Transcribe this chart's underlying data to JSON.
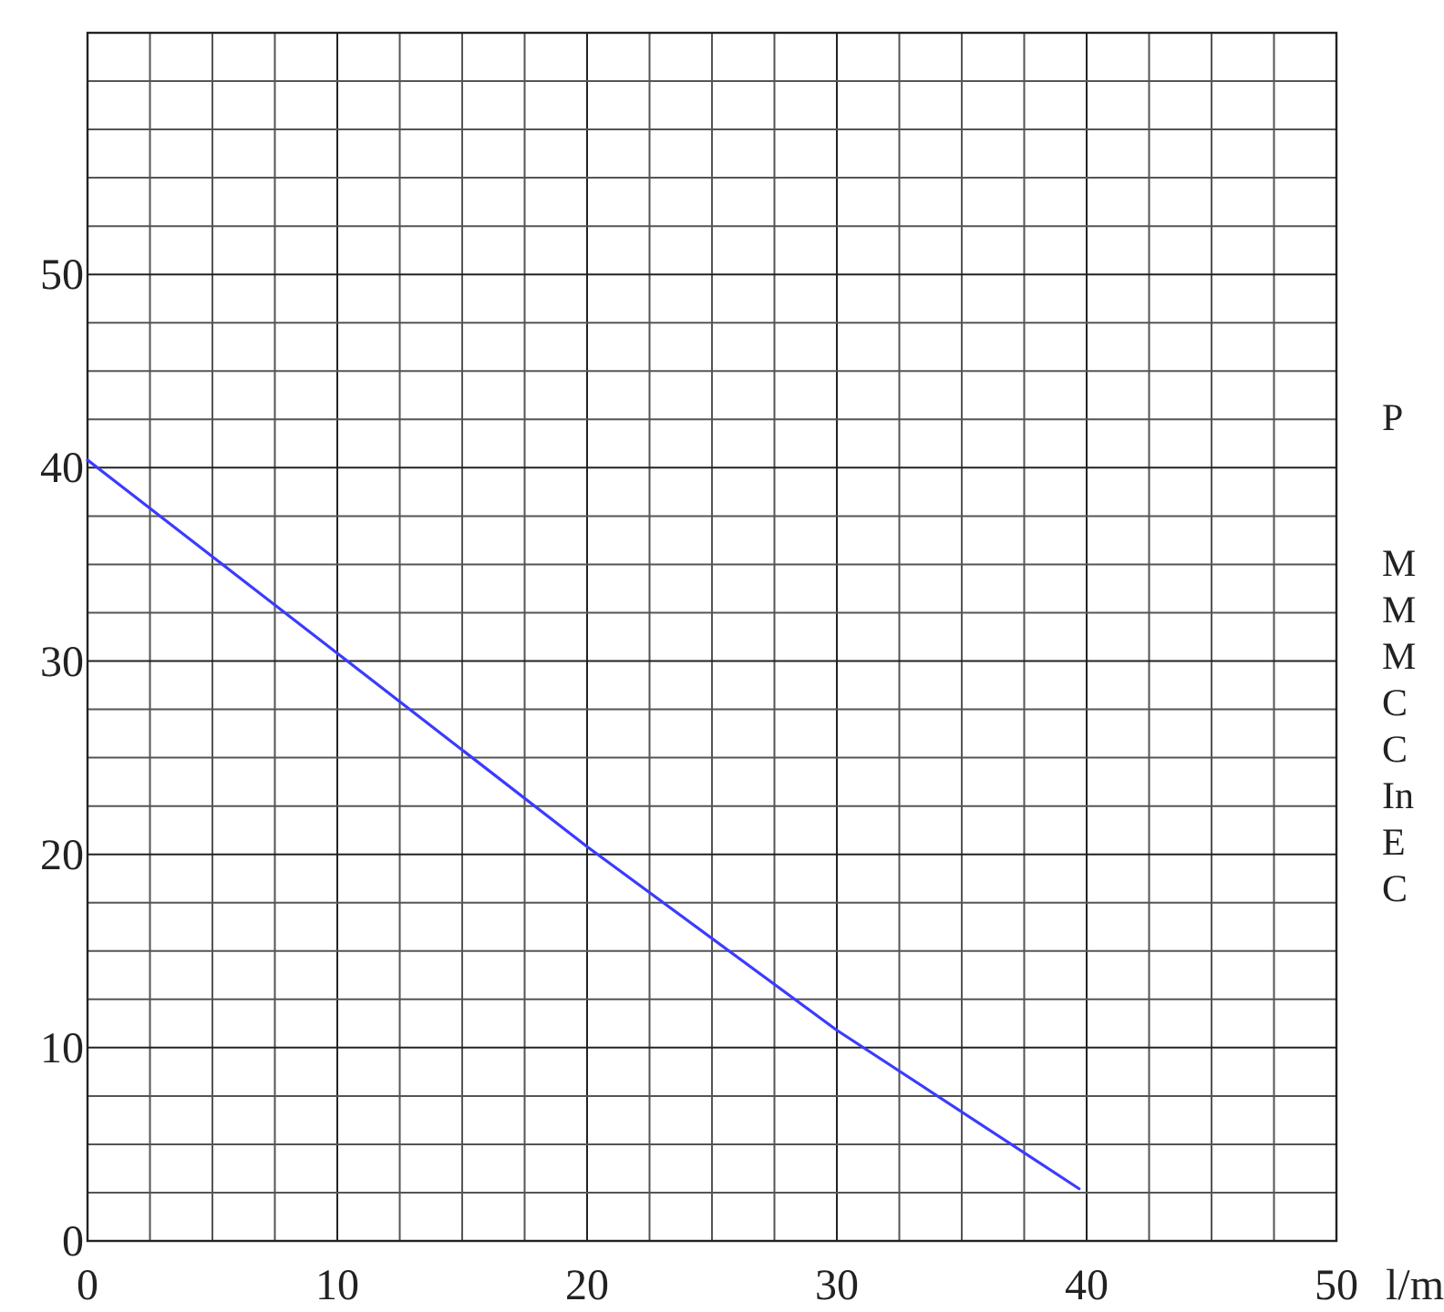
{
  "chart_data": {
    "type": "line",
    "xlabel": "l/m",
    "x": [
      0,
      10,
      20,
      30,
      39.7
    ],
    "values": [
      40.4,
      30.4,
      20.4,
      10.9,
      2.7
    ],
    "color": "#3b3bff",
    "xlim": [
      0,
      50
    ],
    "ylim": [
      0,
      62.5
    ],
    "xticks": [
      0,
      {
        "value": 2.5,
        "label": null
      },
      {
        "value": 5,
        "label": null
      },
      {
        "value": 7.5,
        "label": null
      },
      10,
      {
        "value": 12.5,
        "label": null
      },
      {
        "value": 15,
        "label": null
      },
      {
        "value": 17.5,
        "label": null
      },
      20,
      {
        "value": 22.5,
        "label": null
      },
      {
        "value": 25,
        "label": null
      },
      {
        "value": 27.5,
        "label": null
      },
      30,
      {
        "value": 32.5,
        "label": null
      },
      {
        "value": 35,
        "label": null
      },
      {
        "value": 37.5,
        "label": null
      },
      40,
      {
        "value": 42.5,
        "label": null
      },
      {
        "value": 45,
        "label": null
      },
      {
        "value": 47.5,
        "label": null
      },
      50
    ],
    "yticks": [
      0,
      {
        "value": 2.5,
        "label": null
      },
      {
        "value": 5,
        "label": null
      },
      {
        "value": 7.5,
        "label": null
      },
      10,
      {
        "value": 12.5,
        "label": null
      },
      {
        "value": 15,
        "label": null
      },
      {
        "value": 17.5,
        "label": null
      },
      20,
      {
        "value": 22.5,
        "label": null
      },
      {
        "value": 25,
        "label": null
      },
      {
        "value": 27.5,
        "label": null
      },
      30,
      {
        "value": 32.5,
        "label": null
      },
      {
        "value": 35,
        "label": null
      },
      {
        "value": 37.5,
        "label": null
      },
      40,
      {
        "value": 42.5,
        "label": null
      },
      {
        "value": 45,
        "label": null
      },
      {
        "value": 47.5,
        "label": null
      },
      50,
      {
        "value": 52.5,
        "label": null
      },
      {
        "value": 55,
        "label": null
      },
      {
        "value": 57.5,
        "label": null
      },
      {
        "value": 60,
        "label": null
      },
      {
        "value": 62.5,
        "label": null
      }
    ],
    "grid": true,
    "annotations": [
      "P",
      "M",
      "M",
      "M",
      "C",
      "C",
      "In",
      "E",
      "C"
    ]
  }
}
